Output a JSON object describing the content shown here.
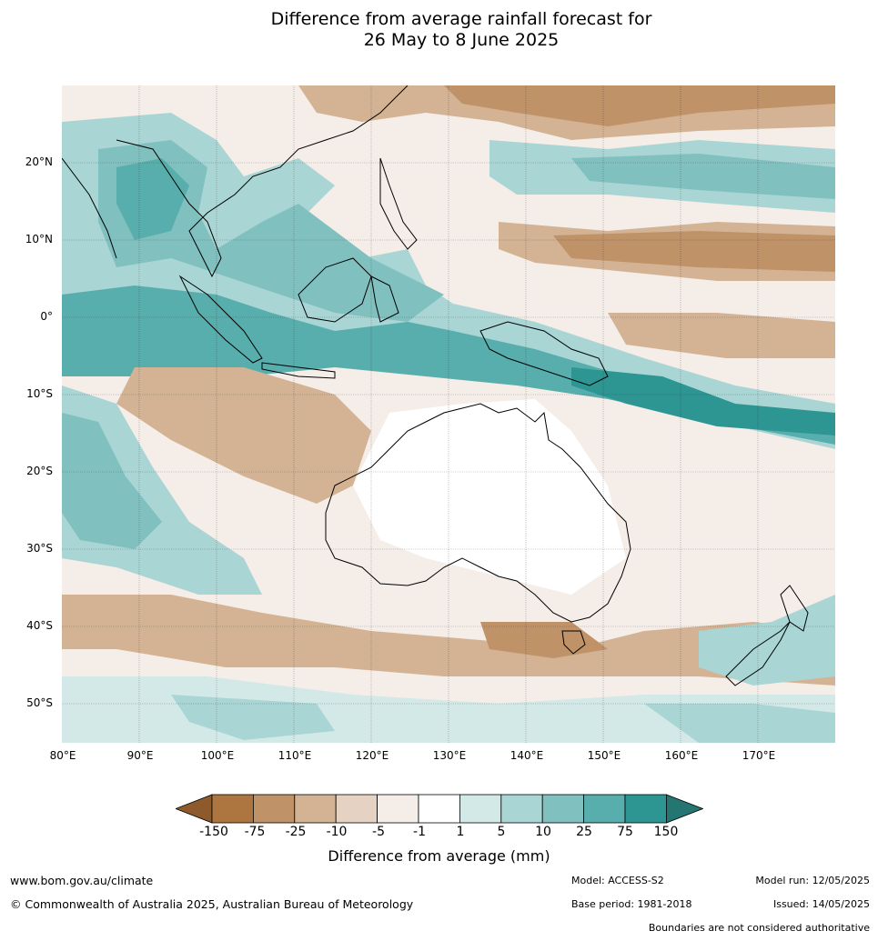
{
  "title": {
    "line1": "Difference from average rainfall forecast for",
    "line2": "26 May to 8 June 2025"
  },
  "axes": {
    "latitudes": [
      "20°N",
      "10°N",
      "0°",
      "10°S",
      "20°S",
      "30°S",
      "40°S",
      "50°S"
    ],
    "longitudes": [
      "80°E",
      "90°E",
      "100°E",
      "110°E",
      "120°E",
      "130°E",
      "140°E",
      "150°E",
      "160°E",
      "170°E"
    ]
  },
  "legend": {
    "ticks": [
      "-150",
      "-75",
      "-25",
      "-10",
      "-5",
      "-1",
      "1",
      "5",
      "10",
      "25",
      "75",
      "150"
    ],
    "colors": [
      "#8e5a2b",
      "#ad7540",
      "#bf9268",
      "#d3b394",
      "#e5d2c3",
      "#f5ede8",
      "#ffffff",
      "#d3e9e8",
      "#a9d5d4",
      "#80c0bf",
      "#58aeac",
      "#2d9693",
      "#257573"
    ],
    "label": "Difference from average (mm)"
  },
  "footer": {
    "url": "www.bom.gov.au/climate",
    "copyright": "© Commonwealth of Australia 2025, Australian Bureau of Meteorology",
    "model": "Model: ACCESS-S2",
    "base_period": "Base period: 1981-2018",
    "model_run": "Model run: 12/05/2025",
    "issued": "Issued: 14/05/2025",
    "disclaimer": "Boundaries are not considered authoritative"
  }
}
